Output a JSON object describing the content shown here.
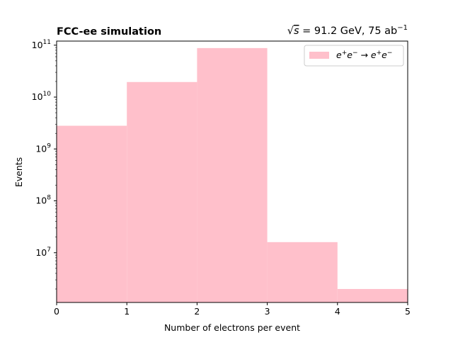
{
  "chart_data": {
    "type": "bar",
    "title_left": "FCC-ee simulation",
    "title_right": {
      "prefix": "√",
      "radicand": "s",
      "rest": " = 91.2 GeV, 75 ab",
      "sup": "−1"
    },
    "xlabel": "Number of electrons per event",
    "ylabel": "Events",
    "yscale": "log",
    "xlim": [
      0,
      5
    ],
    "ylim": [
      1100000,
      120000000000
    ],
    "x_ticks": [
      "0",
      "1",
      "2",
      "3",
      "4",
      "5"
    ],
    "y_ticks": [
      {
        "base": "10",
        "exp": "7",
        "value": 10000000
      },
      {
        "base": "10",
        "exp": "8",
        "value": 100000000
      },
      {
        "base": "10",
        "exp": "9",
        "value": 1000000000
      },
      {
        "base": "10",
        "exp": "10",
        "value": 10000000000
      },
      {
        "base": "10",
        "exp": "11",
        "value": 100000000000
      }
    ],
    "bins": [
      {
        "x0": 0,
        "x1": 1,
        "value": 2800000000
      },
      {
        "x0": 1,
        "x1": 2,
        "value": 19500000000
      },
      {
        "x0": 2,
        "x1": 3,
        "value": 88000000000
      },
      {
        "x0": 3,
        "x1": 4,
        "value": 16000000
      },
      {
        "x0": 4,
        "x1": 5,
        "value": 2000000
      }
    ],
    "color": "#ffc0cb",
    "legend_position": "upper right",
    "series": [
      {
        "name": "e⁺e⁻ → e⁺e⁻",
        "legend": {
          "e1": "e",
          "s1": "+",
          "e2": "e",
          "s2": "−",
          "arrow": " → ",
          "e3": "e",
          "s3": "+",
          "e4": "e",
          "s4": "−"
        }
      }
    ]
  }
}
